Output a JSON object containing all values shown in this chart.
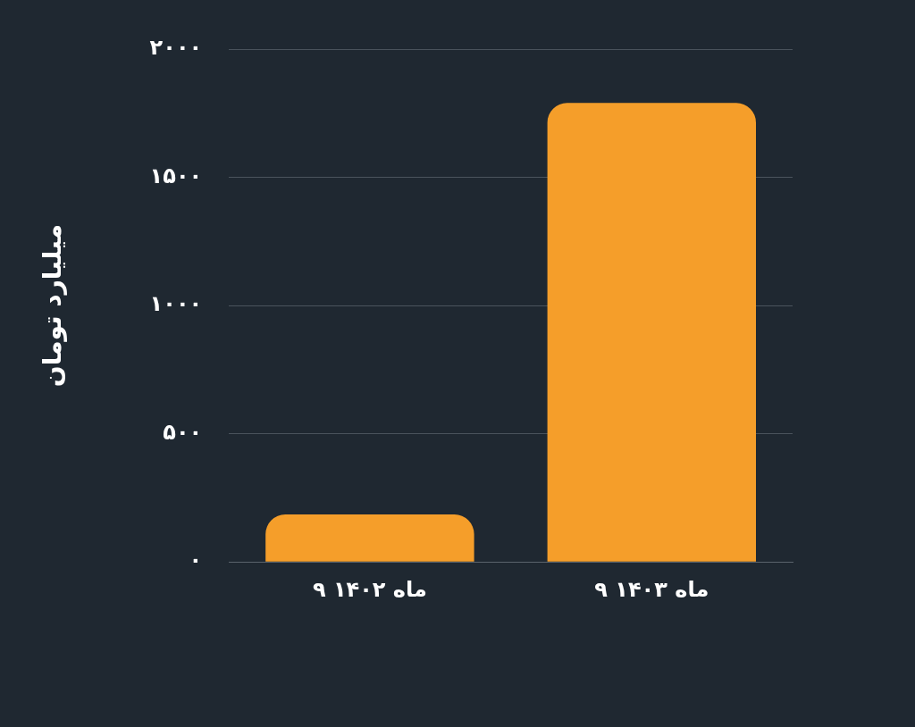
{
  "chart_data": {
    "type": "bar",
    "ylabel": "میلیارد تومان",
    "categories": [
      "۹ ماه ۱۴۰۲",
      "۹ ماه ۱۴۰۳"
    ],
    "series": [
      {
        "color": "#f59e2a",
        "values": [
          185,
          1790
        ]
      }
    ],
    "ylim": [
      0,
      2000
    ],
    "yticks": [
      {
        "value": 0,
        "label": "۰"
      },
      {
        "value": 500,
        "label": "۵۰۰"
      },
      {
        "value": 1000,
        "label": "۱۰۰۰"
      },
      {
        "value": 1500,
        "label": "۱۵۰۰"
      },
      {
        "value": 2000,
        "label": "۲۰۰۰"
      }
    ],
    "grid": "y",
    "legend": false
  }
}
